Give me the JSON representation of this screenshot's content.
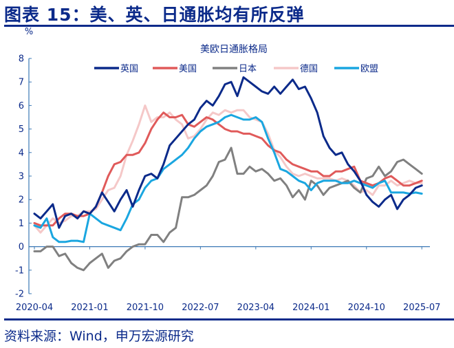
{
  "header": {
    "title": "图表 15：美、英、日通胀均有所反弹"
  },
  "footer": {
    "source": "资料来源：Wind，申万宏源研究"
  },
  "chart_data": {
    "type": "line",
    "title": "美欧日通胀格局",
    "ylabel": "%",
    "xlabel": "",
    "ylim": [
      -2,
      8
    ],
    "yticks": [
      -2,
      -1,
      0,
      1,
      2,
      3,
      4,
      5,
      6,
      7,
      8
    ],
    "xtick_labels": [
      "2020-04",
      "2021-01",
      "2021-10",
      "2022-07",
      "2023-04",
      "2024-01",
      "2024-10",
      "2025-07"
    ],
    "x_start": "2020-04",
    "x_end": "2025-07",
    "frequency": "monthly",
    "legend_position": "top",
    "grid": false,
    "series": [
      {
        "name": "英国",
        "color": "#0b2a8a",
        "values": [
          1.4,
          1.2,
          1.5,
          1.8,
          0.8,
          1.3,
          1.4,
          1.2,
          1.5,
          1.4,
          1.7,
          2.3,
          1.9,
          1.5,
          2.0,
          2.4,
          1.7,
          2.4,
          3.0,
          3.1,
          2.9,
          3.5,
          4.3,
          4.6,
          4.9,
          5.2,
          5.4,
          5.9,
          6.2,
          6.0,
          6.4,
          6.9,
          7.0,
          6.4,
          7.2,
          7.0,
          6.8,
          6.6,
          6.5,
          6.8,
          6.5,
          6.8,
          7.1,
          6.7,
          6.8,
          6.3,
          5.7,
          4.7,
          4.2,
          3.9,
          4.0,
          3.5,
          3.2,
          2.8,
          2.2,
          1.9,
          1.7,
          2.0,
          2.2,
          1.6,
          2.0,
          2.2,
          2.5,
          2.6
        ]
      },
      {
        "name": "美国",
        "color": "#e05a5a",
        "values": [
          1.0,
          0.9,
          0.9,
          0.9,
          1.2,
          1.4,
          1.4,
          1.3,
          1.3,
          1.4,
          1.7,
          2.3,
          3.0,
          3.5,
          3.6,
          3.9,
          3.9,
          4.0,
          4.4,
          5.0,
          5.4,
          5.7,
          5.5,
          5.5,
          5.6,
          5.2,
          5.1,
          5.3,
          5.5,
          5.4,
          5.2,
          5.0,
          4.9,
          4.9,
          4.8,
          4.8,
          4.7,
          4.6,
          4.3,
          4.1,
          4.0,
          3.7,
          3.5,
          3.4,
          3.3,
          3.2,
          3.2,
          3.0,
          3.0,
          3.2,
          3.2,
          3.3,
          3.4,
          2.8,
          2.7,
          2.6,
          2.7,
          2.9,
          3.0,
          2.8,
          2.6,
          2.6,
          2.7,
          2.8
        ]
      },
      {
        "name": "日本",
        "color": "#808080",
        "values": [
          -0.2,
          -0.2,
          0.0,
          0.0,
          -0.4,
          -0.3,
          -0.7,
          -0.9,
          -1.0,
          -0.7,
          -0.5,
          -0.3,
          -0.9,
          -0.6,
          -0.5,
          -0.2,
          0.0,
          0.1,
          0.1,
          0.5,
          0.5,
          0.2,
          0.6,
          0.8,
          2.1,
          2.1,
          2.2,
          2.4,
          2.6,
          3.0,
          3.6,
          3.7,
          4.2,
          3.1,
          3.1,
          3.4,
          3.2,
          3.3,
          3.1,
          2.8,
          2.9,
          2.6,
          2.1,
          2.4,
          2.0,
          2.8,
          2.6,
          2.2,
          2.5,
          2.6,
          2.7,
          2.8,
          2.5,
          2.3,
          2.9,
          3.0,
          3.4,
          3.0,
          3.2,
          3.6,
          3.7,
          3.5,
          3.3,
          3.1
        ]
      },
      {
        "name": "德国",
        "color": "#f5c8c8",
        "values": [
          0.9,
          0.6,
          0.9,
          1.2,
          1.0,
          1.1,
          1.3,
          1.3,
          1.5,
          1.5,
          1.6,
          2.0,
          2.4,
          2.5,
          3.0,
          3.9,
          4.5,
          5.2,
          6.0,
          5.3,
          5.5,
          5.5,
          5.7,
          5.4,
          5.2,
          4.6,
          4.7,
          5.0,
          5.4,
          5.7,
          5.6,
          5.8,
          5.7,
          5.8,
          5.8,
          5.5,
          5.4,
          5.3,
          4.8,
          4.1,
          3.8,
          3.4,
          3.1,
          3.0,
          3.1,
          3.0,
          2.9,
          2.9,
          2.9,
          2.8,
          2.9,
          2.8,
          2.6,
          2.3,
          2.4,
          2.2,
          2.6,
          2.6,
          2.8,
          2.6,
          2.7,
          2.8,
          2.7,
          2.7
        ]
      },
      {
        "name": "欧盟",
        "color": "#1aa6e0",
        "values": [
          0.9,
          0.8,
          1.2,
          0.4,
          0.2,
          0.2,
          0.25,
          0.25,
          0.2,
          1.4,
          1.2,
          1.0,
          0.9,
          0.8,
          0.7,
          1.2,
          1.8,
          2.0,
          2.5,
          2.8,
          2.9,
          3.3,
          3.5,
          3.7,
          3.9,
          4.2,
          4.6,
          4.9,
          5.1,
          5.2,
          5.3,
          5.5,
          5.6,
          5.5,
          5.4,
          5.4,
          5.5,
          5.3,
          4.6,
          4.0,
          3.3,
          3.2,
          3.0,
          2.8,
          2.7,
          2.4,
          2.7,
          2.8,
          2.8,
          2.8,
          2.7,
          2.7,
          2.8,
          2.7,
          2.6,
          2.5,
          2.7,
          2.8,
          2.3,
          2.3,
          2.3,
          2.25,
          2.3,
          2.25
        ]
      }
    ]
  }
}
